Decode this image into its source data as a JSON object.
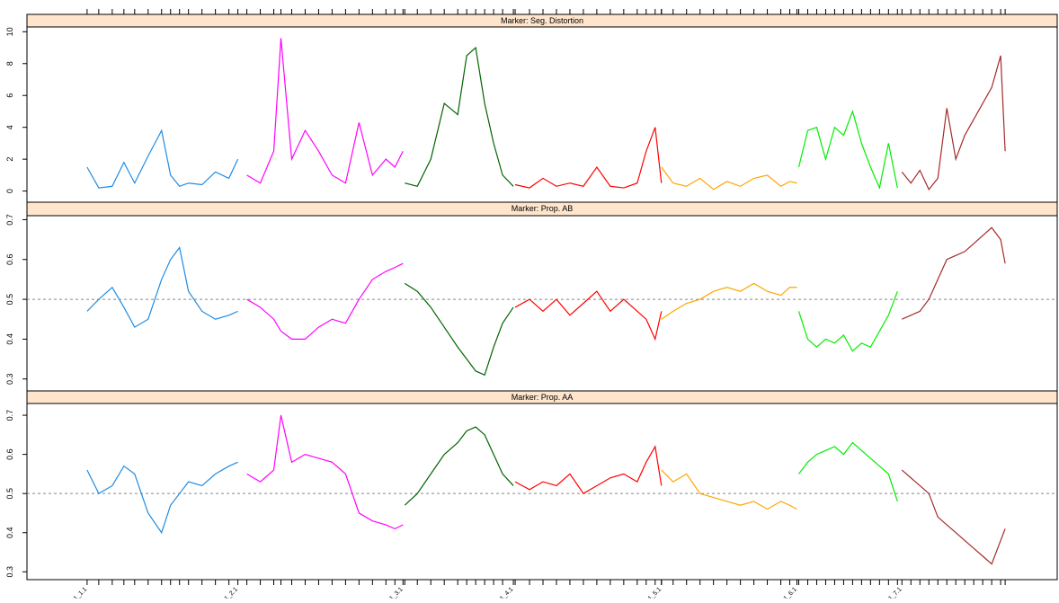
{
  "chart_data": [
    {
      "type": "line",
      "title": "Marker: Seg. Distortion",
      "xlim": [
        0,
        1148
      ],
      "ylim": [
        -0.7,
        10.3
      ],
      "yticks": [
        0,
        2,
        4,
        6,
        8,
        10
      ],
      "series": [
        {
          "color": "#1e8ce6",
          "x": [
            67,
            80,
            95,
            108,
            120,
            135,
            150,
            160,
            170,
            180,
            195,
            210,
            225,
            235
          ],
          "values": [
            1.5,
            0.2,
            0.3,
            1.8,
            0.5,
            2.2,
            3.8,
            1.0,
            0.3,
            0.5,
            0.4,
            1.2,
            0.8,
            2.0
          ]
        },
        {
          "color": "#ff00ff",
          "x": [
            245,
            260,
            275,
            283,
            295,
            310,
            325,
            340,
            355,
            370,
            385,
            400,
            410,
            419
          ],
          "values": [
            1.0,
            0.5,
            2.5,
            9.6,
            2.0,
            3.8,
            2.5,
            1.0,
            0.5,
            4.3,
            1.0,
            2.0,
            1.5,
            2.5
          ]
        },
        {
          "color": "#006400",
          "x": [
            421,
            435,
            450,
            465,
            480,
            490,
            500,
            510,
            520,
            530,
            542
          ],
          "values": [
            0.5,
            0.3,
            2.0,
            5.5,
            4.8,
            8.5,
            9.0,
            5.5,
            3.0,
            1.0,
            0.3
          ]
        },
        {
          "color": "#ff0000",
          "x": [
            544,
            560,
            575,
            590,
            605,
            620,
            635,
            650,
            665,
            680,
            690,
            700,
            707
          ],
          "values": [
            0.4,
            0.2,
            0.8,
            0.3,
            0.5,
            0.3,
            1.5,
            0.3,
            0.2,
            0.5,
            2.5,
            4.0,
            0.5
          ]
        },
        {
          "color": "#ffa500",
          "x": [
            707,
            720,
            735,
            750,
            765,
            780,
            795,
            810,
            825,
            840,
            850,
            858
          ],
          "values": [
            1.5,
            0.5,
            0.3,
            0.8,
            0.1,
            0.6,
            0.3,
            0.8,
            1.0,
            0.3,
            0.6,
            0.5
          ]
        },
        {
          "color": "#00ee00",
          "x": [
            860,
            870,
            880,
            890,
            900,
            910,
            920,
            930,
            940,
            950,
            960,
            970
          ],
          "values": [
            1.5,
            3.8,
            4.0,
            2.0,
            4.0,
            3.5,
            5.0,
            3.0,
            1.5,
            0.2,
            3.0,
            0.2
          ]
        },
        {
          "color": "#a52a2a",
          "x": [
            975,
            985,
            995,
            1005,
            1015,
            1025,
            1035,
            1045,
            1055,
            1065,
            1075,
            1085,
            1090
          ],
          "values": [
            1.2,
            0.5,
            1.3,
            0.1,
            0.8,
            5.2,
            2.0,
            3.5,
            4.5,
            5.5,
            6.5,
            8.5,
            2.5
          ]
        }
      ]
    },
    {
      "type": "line",
      "title": "Marker: Prop. AB",
      "xlim": [
        0,
        1148
      ],
      "ylim": [
        0.27,
        0.71
      ],
      "yticks": [
        0.3,
        0.4,
        0.5,
        0.6,
        0.7
      ],
      "reference_line": 0.5,
      "series": [
        {
          "color": "#1e8ce6",
          "x": [
            67,
            80,
            95,
            108,
            120,
            135,
            150,
            160,
            170,
            180,
            195,
            210,
            225,
            235
          ],
          "values": [
            0.47,
            0.5,
            0.53,
            0.48,
            0.43,
            0.45,
            0.55,
            0.6,
            0.63,
            0.52,
            0.47,
            0.45,
            0.46,
            0.47
          ]
        },
        {
          "color": "#ff00ff",
          "x": [
            245,
            260,
            275,
            283,
            295,
            310,
            325,
            340,
            355,
            370,
            385,
            400,
            410,
            419
          ],
          "values": [
            0.5,
            0.48,
            0.45,
            0.42,
            0.4,
            0.4,
            0.43,
            0.45,
            0.44,
            0.5,
            0.55,
            0.57,
            0.58,
            0.59
          ]
        },
        {
          "color": "#006400",
          "x": [
            421,
            435,
            450,
            465,
            480,
            490,
            500,
            510,
            520,
            530,
            542
          ],
          "values": [
            0.54,
            0.52,
            0.48,
            0.43,
            0.38,
            0.35,
            0.32,
            0.31,
            0.38,
            0.44,
            0.48
          ]
        },
        {
          "color": "#ff0000",
          "x": [
            544,
            560,
            575,
            590,
            605,
            620,
            635,
            650,
            665,
            680,
            690,
            700,
            707
          ],
          "values": [
            0.48,
            0.5,
            0.47,
            0.5,
            0.46,
            0.49,
            0.52,
            0.47,
            0.5,
            0.47,
            0.45,
            0.4,
            0.47
          ]
        },
        {
          "color": "#ffa500",
          "x": [
            707,
            720,
            735,
            750,
            765,
            780,
            795,
            810,
            825,
            840,
            850,
            858
          ],
          "values": [
            0.45,
            0.47,
            0.49,
            0.5,
            0.52,
            0.53,
            0.52,
            0.54,
            0.52,
            0.51,
            0.53,
            0.53
          ]
        },
        {
          "color": "#00ee00",
          "x": [
            860,
            870,
            880,
            890,
            900,
            910,
            920,
            930,
            940,
            950,
            960,
            970
          ],
          "values": [
            0.47,
            0.4,
            0.38,
            0.4,
            0.39,
            0.41,
            0.37,
            0.39,
            0.38,
            0.42,
            0.46,
            0.52
          ]
        },
        {
          "color": "#a52a2a",
          "x": [
            975,
            985,
            995,
            1005,
            1015,
            1025,
            1035,
            1045,
            1055,
            1065,
            1075,
            1085,
            1090
          ],
          "values": [
            0.45,
            0.46,
            0.47,
            0.5,
            0.55,
            0.6,
            0.61,
            0.62,
            0.64,
            0.66,
            0.68,
            0.65,
            0.59
          ]
        }
      ]
    },
    {
      "type": "line",
      "title": "Marker: Prop. AA",
      "xlim": [
        0,
        1148
      ],
      "ylim": [
        0.28,
        0.73
      ],
      "yticks": [
        0.3,
        0.4,
        0.5,
        0.6,
        0.7
      ],
      "reference_line": 0.5,
      "xticks": [
        {
          "value": 67,
          "label": "1_1.1"
        },
        {
          "value": 235,
          "label": "1_2.1"
        },
        {
          "value": 419,
          "label": "1_3.1"
        },
        {
          "value": 542,
          "label": "1_4.1"
        },
        {
          "value": 707,
          "label": "1_5.1"
        },
        {
          "value": 858,
          "label": "1_6.1"
        },
        {
          "value": 975,
          "label": "1_7.1"
        }
      ],
      "series": [
        {
          "color": "#1e8ce6",
          "x": [
            67,
            80,
            95,
            108,
            120,
            135,
            150,
            160,
            170,
            180,
            195,
            210,
            225,
            235
          ],
          "values": [
            0.56,
            0.5,
            0.52,
            0.57,
            0.55,
            0.45,
            0.4,
            0.47,
            0.5,
            0.53,
            0.52,
            0.55,
            0.57,
            0.58
          ]
        },
        {
          "color": "#ff00ff",
          "x": [
            245,
            260,
            275,
            283,
            295,
            310,
            325,
            340,
            355,
            370,
            385,
            400,
            410,
            419
          ],
          "values": [
            0.55,
            0.53,
            0.56,
            0.7,
            0.58,
            0.6,
            0.59,
            0.58,
            0.55,
            0.45,
            0.43,
            0.42,
            0.41,
            0.42
          ]
        },
        {
          "color": "#006400",
          "x": [
            421,
            435,
            450,
            465,
            480,
            490,
            500,
            510,
            520,
            530,
            542
          ],
          "values": [
            0.47,
            0.5,
            0.55,
            0.6,
            0.63,
            0.66,
            0.67,
            0.65,
            0.6,
            0.55,
            0.52
          ]
        },
        {
          "color": "#ff0000",
          "x": [
            544,
            560,
            575,
            590,
            605,
            620,
            635,
            650,
            665,
            680,
            690,
            700,
            707
          ],
          "values": [
            0.53,
            0.51,
            0.53,
            0.52,
            0.55,
            0.5,
            0.52,
            0.54,
            0.55,
            0.53,
            0.58,
            0.62,
            0.52
          ]
        },
        {
          "color": "#ffa500",
          "x": [
            707,
            720,
            735,
            750,
            765,
            780,
            795,
            810,
            825,
            840,
            850,
            858
          ],
          "values": [
            0.56,
            0.53,
            0.55,
            0.5,
            0.49,
            0.48,
            0.47,
            0.48,
            0.46,
            0.48,
            0.47,
            0.46
          ]
        },
        {
          "color": "#00ee00",
          "x": [
            860,
            870,
            880,
            890,
            900,
            910,
            920,
            930,
            940,
            950,
            960,
            970
          ],
          "values": [
            0.55,
            0.58,
            0.6,
            0.61,
            0.62,
            0.6,
            0.63,
            0.61,
            0.59,
            0.57,
            0.55,
            0.48
          ]
        },
        {
          "color": "#a52a2a",
          "x": [
            975,
            985,
            995,
            1005,
            1015,
            1025,
            1035,
            1045,
            1055,
            1065,
            1075,
            1085,
            1090
          ],
          "values": [
            0.56,
            0.54,
            0.52,
            0.5,
            0.44,
            0.42,
            0.4,
            0.38,
            0.36,
            0.34,
            0.32,
            0.38,
            0.41
          ]
        }
      ]
    }
  ]
}
